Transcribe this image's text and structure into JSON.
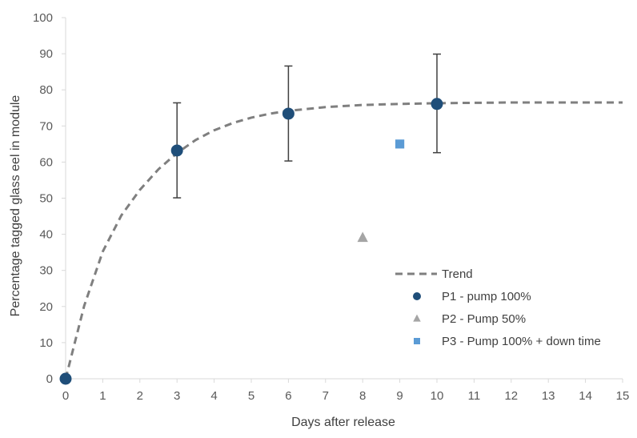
{
  "chart_data": {
    "type": "scatter",
    "title": "",
    "xlabel": "Days after release",
    "ylabel": "Percentage tagged glass eel in module",
    "xlim": [
      0,
      15
    ],
    "ylim": [
      0,
      100
    ],
    "x_ticks": [
      0,
      1,
      2,
      3,
      4,
      5,
      6,
      7,
      8,
      9,
      10,
      11,
      12,
      13,
      14,
      15
    ],
    "y_ticks": [
      0,
      10,
      20,
      30,
      40,
      50,
      60,
      70,
      80,
      90,
      100
    ],
    "grid": false,
    "legend_position": "bottom-right",
    "series": [
      {
        "name": "Trend",
        "type": "line",
        "style": "dashed",
        "color": "#7f7f7f",
        "x": [
          0,
          0.5,
          1,
          1.5,
          2,
          2.5,
          3,
          3.5,
          4,
          4.5,
          5,
          5.5,
          6,
          7,
          8,
          9,
          10,
          11,
          12,
          13,
          14,
          15
        ],
        "y": [
          0,
          20.2,
          35.2,
          45.2,
          52.3,
          58.0,
          62.5,
          66.1,
          68.8,
          70.8,
          72.3,
          73.4,
          74.2,
          75.2,
          75.8,
          76.1,
          76.3,
          76.4,
          76.5,
          76.5,
          76.5,
          76.5
        ]
      },
      {
        "name": "P1 - pump 100%",
        "type": "scatter",
        "marker": "circle",
        "color": "#1f4e79",
        "x": [
          0,
          3,
          6,
          10
        ],
        "y": [
          0,
          63.2,
          73.4,
          76.1
        ],
        "error_low": [
          0,
          50.1,
          60.3,
          62.6
        ],
        "error_high": [
          0,
          76.4,
          86.6,
          89.9
        ]
      },
      {
        "name": "P2 - Pump 50%",
        "type": "scatter",
        "marker": "triangle",
        "color": "#a5a5a5",
        "x": [
          8
        ],
        "y": [
          39
        ]
      },
      {
        "name": "P3 - Pump 100% + down time",
        "type": "scatter",
        "marker": "square",
        "color": "#5b9bd5",
        "x": [
          9
        ],
        "y": [
          65
        ]
      }
    ]
  }
}
